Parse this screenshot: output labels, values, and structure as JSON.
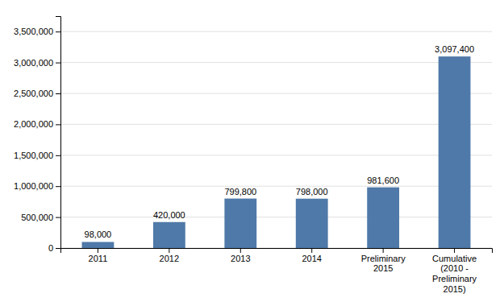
{
  "chart_data": {
    "type": "bar",
    "categories": [
      "2011",
      "2012",
      "2013",
      "2014",
      "Preliminary\n2015",
      "Cumulative\n(2010 -\nPreliminary\n2015)"
    ],
    "values": [
      98000,
      420000,
      799800,
      798000,
      981600,
      3097400
    ],
    "value_labels": [
      "98,000",
      "420,000",
      "799,800",
      "798,000",
      "981,600",
      "3,097,400"
    ],
    "data_labels": true,
    "color": "#4f79a8",
    "ylim": [
      0,
      3750000
    ],
    "yticks": [
      0,
      {
        "value": 500000,
        "label": "500,000"
      },
      {
        "value": 1000000,
        "label": "1,000,000"
      },
      {
        "value": 1500000,
        "label": "1,500,000"
      },
      {
        "value": 2000000,
        "label": "2,000,000"
      },
      {
        "value": 2500000,
        "label": "2,500,000"
      },
      {
        "value": 3000000,
        "label": "3,000,000"
      },
      {
        "value": 3500000,
        "label": "3,500,000"
      }
    ],
    "grid": true
  }
}
